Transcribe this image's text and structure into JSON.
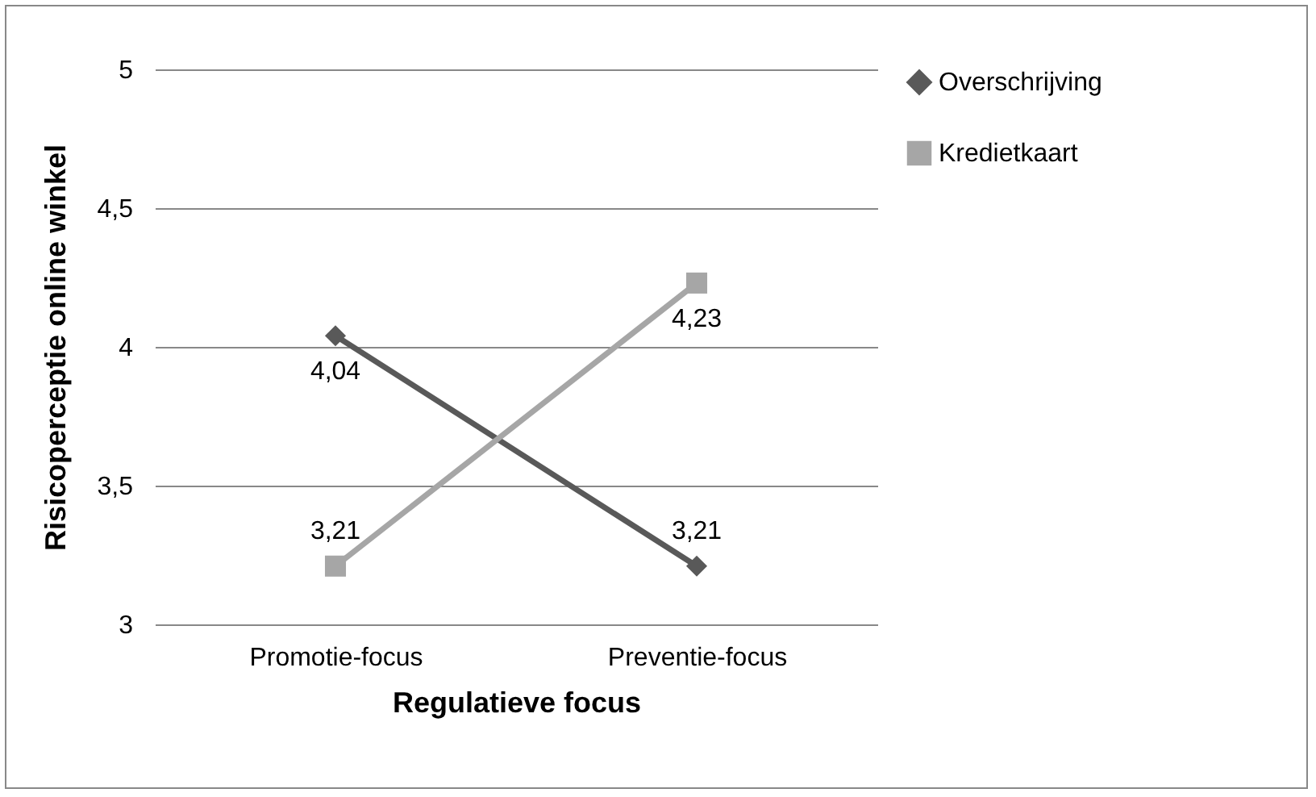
{
  "chart_data": {
    "type": "line",
    "xlabel": "Regulatieve focus",
    "ylabel": "Risicoperceptie online winkel",
    "categories": [
      "Promotie-focus",
      "Preventie-focus"
    ],
    "series": [
      {
        "name": "Overschrijving",
        "color": "#595959",
        "marker": "diamond",
        "values": [
          4.04,
          3.21
        ],
        "value_labels": [
          "4,04",
          "3,21"
        ]
      },
      {
        "name": "Kredietkaart",
        "color": "#a6a6a6",
        "marker": "square",
        "values": [
          3.21,
          4.23
        ],
        "value_labels": [
          "3,21",
          "4,23"
        ]
      }
    ],
    "ylim": [
      3,
      5
    ],
    "yticks": [
      {
        "value": 3,
        "label": "3"
      },
      {
        "value": 3.5,
        "label": "3,5"
      },
      {
        "value": 4,
        "label": "4"
      },
      {
        "value": 4.5,
        "label": "4,5"
      },
      {
        "value": 5,
        "label": "5"
      }
    ],
    "grid": "y",
    "legend": "right",
    "line_style": "solid"
  }
}
